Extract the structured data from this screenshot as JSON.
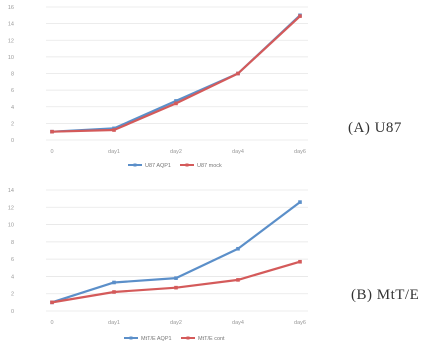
{
  "colors": {
    "series_a": "#5b8fc9",
    "series_b": "#d45a5a",
    "grid": "#e6e6e6",
    "tick_text": "#999999"
  },
  "panel_labels": {
    "a": "(A) U87",
    "b": "(B) MtT/E"
  },
  "chart_data": [
    {
      "type": "line",
      "categories": [
        "0",
        "day1",
        "day2",
        "day4",
        "day6"
      ],
      "y_ticks": [
        0,
        2,
        4,
        6,
        8,
        10,
        12,
        14,
        16
      ],
      "ylim": [
        0,
        16
      ],
      "grid": true,
      "legend_position": "bottom",
      "series": [
        {
          "name": "U87 AQP1",
          "values": [
            1.0,
            1.4,
            4.7,
            8.0,
            15.0
          ]
        },
        {
          "name": "U87 mock",
          "values": [
            1.0,
            1.2,
            4.4,
            8.0,
            14.9
          ]
        }
      ]
    },
    {
      "type": "line",
      "categories": [
        "0",
        "day1",
        "day2",
        "day4",
        "day6"
      ],
      "y_ticks": [
        0,
        2,
        4,
        6,
        8,
        10,
        12,
        14
      ],
      "ylim": [
        0,
        14
      ],
      "grid": true,
      "legend_position": "bottom",
      "series": [
        {
          "name": "MtT/E AQP1",
          "values": [
            1.0,
            3.3,
            3.8,
            7.2,
            12.6
          ]
        },
        {
          "name": "MtT/E cont",
          "values": [
            1.0,
            2.2,
            2.7,
            3.6,
            5.7
          ]
        }
      ]
    }
  ]
}
